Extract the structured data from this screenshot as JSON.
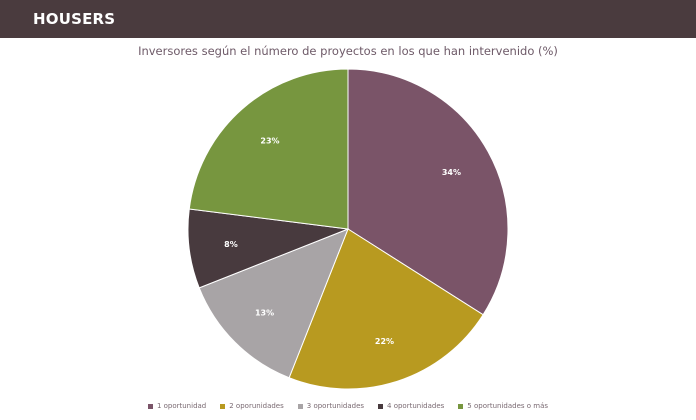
{
  "header": {
    "logo_text": "HOUSERS"
  },
  "chart_data": {
    "type": "pie",
    "title": "Inversores según el número de proyectos en los que han intervenido (%)",
    "categories": [
      "1 oportunidad",
      "2 oporunidades",
      "3 oportunidades",
      "4 oportunidades",
      "5 oportunidades o más"
    ],
    "values": [
      34,
      22,
      13,
      8,
      23
    ],
    "labels": [
      "34%",
      "22%",
      "13%",
      "8%",
      "23%"
    ],
    "colors": [
      "#7a5468",
      "#b89a20",
      "#a8a4a6",
      "#483a3e",
      "#77963f"
    ],
    "legend_position": "bottom"
  }
}
